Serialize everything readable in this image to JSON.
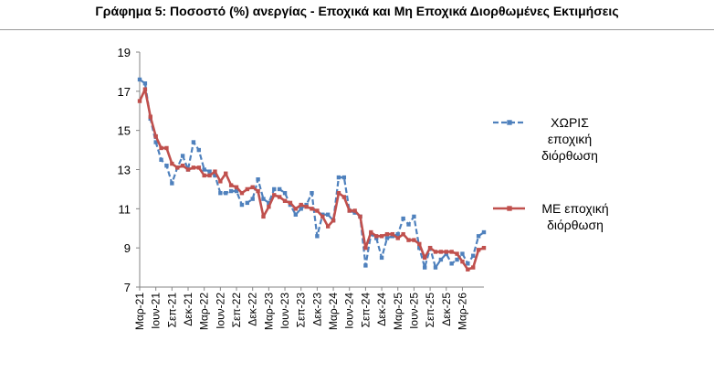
{
  "title": "Γράφημα 5: Ποσοστό (%) ανεργίας - Εποχικά και Μη Εποχικά Διορθωμένες Εκτιμήσεις",
  "chart_data": {
    "type": "line",
    "title": "Γράφημα 5: Ποσοστό (%) ανεργίας - Εποχικά και Μη Εποχικά Διορθωμένες Εκτιμήσεις",
    "xlabel": "",
    "ylabel": "",
    "ylim": [
      7,
      19
    ],
    "yticks": [
      "7",
      "9",
      "11",
      "13",
      "15",
      "17",
      "19"
    ],
    "xtick_labels": [
      "Μαρ-21",
      "Ιουν-21",
      "Σεπ-21",
      "Δεκ-21",
      "Μαρ-22",
      "Ιουν-22",
      "Σεπ-22",
      "Δεκ-22",
      "Μαρ-23",
      "Ιουν-23",
      "Σεπ-23",
      "Δεκ-23",
      "Μαρ-24",
      "Ιουν-24",
      "Σεπ-24",
      "Δεκ-24",
      "Μαρ-25",
      "Ιουν-25",
      "Σεπ-25",
      "Δεκ-25",
      "Μαρ-26"
    ],
    "grid": false,
    "legend_position": "right",
    "series": [
      {
        "name": "ΧΩΡΙΣ εποχική διόρθωση",
        "color": "#4f81bd",
        "style": "dashed",
        "values": [
          17.6,
          17.4,
          15.6,
          14.4,
          13.5,
          13.2,
          12.3,
          13.1,
          13.7,
          13.0,
          14.4,
          14.0,
          13.0,
          12.9,
          12.7,
          11.8,
          11.8,
          11.9,
          11.9,
          11.2,
          11.3,
          11.5,
          12.5,
          11.5,
          11.3,
          12.0,
          12.0,
          11.8,
          11.2,
          10.7,
          11.0,
          11.2,
          11.8,
          9.6,
          10.7,
          10.7,
          10.4,
          12.6,
          12.6,
          10.9,
          10.8,
          10.6,
          8.1,
          9.7,
          9.5,
          8.5,
          9.5,
          9.6,
          9.7,
          10.5,
          10.2,
          10.6,
          9.0,
          8.0,
          9.0,
          8.0,
          8.4,
          8.7,
          8.2,
          8.4,
          8.7,
          8.2,
          8.6,
          9.6,
          9.8
        ]
      },
      {
        "name": "ΜΕ εποχική διόρθωση",
        "color": "#c0504d",
        "style": "solid",
        "values": [
          16.5,
          17.1,
          15.7,
          14.7,
          14.1,
          14.1,
          13.3,
          13.1,
          13.2,
          13.0,
          13.1,
          13.1,
          12.7,
          12.7,
          12.9,
          12.4,
          12.8,
          12.2,
          12.1,
          11.8,
          12.0,
          12.1,
          11.9,
          10.6,
          11.1,
          11.7,
          11.6,
          11.4,
          11.3,
          11.0,
          11.2,
          11.1,
          11.0,
          10.9,
          10.6,
          10.1,
          10.4,
          11.8,
          11.6,
          10.9,
          10.9,
          10.6,
          9.0,
          9.8,
          9.6,
          9.6,
          9.7,
          9.7,
          9.5,
          9.7,
          9.4,
          9.4,
          9.2,
          8.5,
          9.0,
          8.8,
          8.8,
          8.8,
          8.8,
          8.7,
          8.3,
          7.9,
          8.0,
          8.9,
          9.0
        ]
      }
    ]
  },
  "legend": [
    {
      "lines": [
        "ΧΩΡΙΣ",
        "εποχική",
        "διόρθωση"
      ]
    },
    {
      "lines": [
        "ΜΕ εποχική",
        "διόρθωση"
      ]
    }
  ]
}
